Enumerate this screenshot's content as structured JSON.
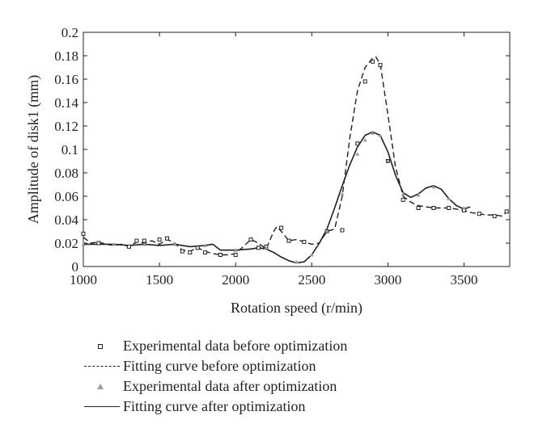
{
  "chart_data": {
    "type": "line",
    "xlabel": "Rotation speed (r/min)",
    "ylabel": "Amplitude of disk1 (mm)",
    "xlim": [
      1000,
      3800
    ],
    "ylim": [
      0,
      0.2
    ],
    "xticks": [
      1000,
      1500,
      2000,
      2500,
      3000,
      3500
    ],
    "xtick_labels": [
      "1000",
      "1500",
      "2000",
      "2500",
      "3000",
      "3500"
    ],
    "yticks": [
      0,
      0.02,
      0.04,
      0.06,
      0.08,
      0.1,
      0.12,
      0.14,
      0.16,
      0.18,
      0.2
    ],
    "ytick_labels": [
      "0",
      "0.02",
      "0.04",
      "0.06",
      "0.08",
      "0.1",
      "0.12",
      "0.14",
      "0.16",
      "0.18",
      "0.2"
    ],
    "grid": false,
    "legend_position": "bottom",
    "series": [
      {
        "name": "Experimental data before optimization",
        "style": "marker-square",
        "color": "#231f20",
        "x": [
          1000,
          1100,
          1300,
          1350,
          1400,
          1500,
          1550,
          1650,
          1700,
          1750,
          1800,
          1900,
          2000,
          2100,
          2150,
          2200,
          2300,
          2350,
          2450,
          2600,
          2700,
          2800,
          2850,
          2900,
          2950,
          3000,
          3100,
          3200,
          3300,
          3400,
          3500,
          3600,
          3700,
          3780
        ],
        "y": [
          0.028,
          0.02,
          0.017,
          0.022,
          0.022,
          0.023,
          0.024,
          0.013,
          0.012,
          0.016,
          0.012,
          0.01,
          0.01,
          0.023,
          0.016,
          0.017,
          0.033,
          0.022,
          0.021,
          0.03,
          0.031,
          0.105,
          0.158,
          0.175,
          0.172,
          0.09,
          0.057,
          0.05,
          0.05,
          0.05,
          0.048,
          0.045,
          0.043,
          0.047
        ]
      },
      {
        "name": "Fitting curve before optimization",
        "style": "dashed",
        "color": "#231f20",
        "x": [
          1000,
          1050,
          1100,
          1150,
          1200,
          1250,
          1300,
          1350,
          1400,
          1450,
          1500,
          1550,
          1600,
          1650,
          1700,
          1750,
          1800,
          1850,
          1900,
          1950,
          2000,
          2050,
          2100,
          2150,
          2200,
          2250,
          2270,
          2300,
          2350,
          2400,
          2450,
          2500,
          2550,
          2600,
          2650,
          2700,
          2750,
          2800,
          2850,
          2900,
          2920,
          2950,
          3000,
          3050,
          3100,
          3150,
          3200,
          3250,
          3300,
          3350,
          3400,
          3450,
          3500,
          3550,
          3600,
          3650,
          3700,
          3750,
          3780
        ],
        "y": [
          0.025,
          0.02,
          0.021,
          0.019,
          0.018,
          0.019,
          0.017,
          0.021,
          0.02,
          0.022,
          0.019,
          0.023,
          0.02,
          0.014,
          0.013,
          0.016,
          0.013,
          0.011,
          0.01,
          0.01,
          0.011,
          0.017,
          0.023,
          0.02,
          0.015,
          0.03,
          0.034,
          0.03,
          0.022,
          0.023,
          0.021,
          0.019,
          0.02,
          0.03,
          0.032,
          0.06,
          0.11,
          0.15,
          0.17,
          0.178,
          0.179,
          0.173,
          0.13,
          0.085,
          0.06,
          0.055,
          0.052,
          0.051,
          0.05,
          0.05,
          0.05,
          0.049,
          0.048,
          0.046,
          0.045,
          0.044,
          0.044,
          0.043,
          0.047
        ]
      },
      {
        "name": "Experimental data after optimization",
        "style": "marker-triangle",
        "color": "#9a9a9a",
        "x": [
          1000,
          1200,
          1400,
          1600,
          1800,
          2000,
          2200,
          2400,
          2500,
          2600,
          2700,
          2800,
          2850,
          2900,
          2950,
          3000,
          3100,
          3200,
          3300,
          3400,
          3500
        ],
        "y": [
          0.019,
          0.019,
          0.019,
          0.019,
          0.018,
          0.014,
          0.016,
          0.004,
          0.01,
          0.03,
          0.062,
          0.096,
          0.108,
          0.114,
          0.112,
          0.09,
          0.062,
          0.061,
          0.068,
          0.058,
          0.05
        ]
      },
      {
        "name": "Fitting curve after optimization",
        "style": "solid",
        "color": "#231f20",
        "x": [
          1000,
          1100,
          1200,
          1300,
          1400,
          1500,
          1600,
          1700,
          1800,
          1850,
          1900,
          1950,
          2000,
          2100,
          2150,
          2200,
          2250,
          2300,
          2350,
          2400,
          2450,
          2500,
          2550,
          2600,
          2650,
          2700,
          2750,
          2800,
          2850,
          2900,
          2950,
          3000,
          3050,
          3100,
          3150,
          3200,
          3250,
          3300,
          3350,
          3400,
          3450,
          3500,
          3540
        ],
        "y": [
          0.019,
          0.019,
          0.019,
          0.018,
          0.019,
          0.018,
          0.019,
          0.017,
          0.018,
          0.019,
          0.014,
          0.014,
          0.014,
          0.015,
          0.016,
          0.015,
          0.012,
          0.008,
          0.005,
          0.003,
          0.004,
          0.01,
          0.02,
          0.032,
          0.05,
          0.069,
          0.087,
          0.102,
          0.112,
          0.115,
          0.112,
          0.098,
          0.078,
          0.063,
          0.059,
          0.062,
          0.067,
          0.069,
          0.066,
          0.058,
          0.052,
          0.049,
          0.051
        ]
      }
    ]
  }
}
